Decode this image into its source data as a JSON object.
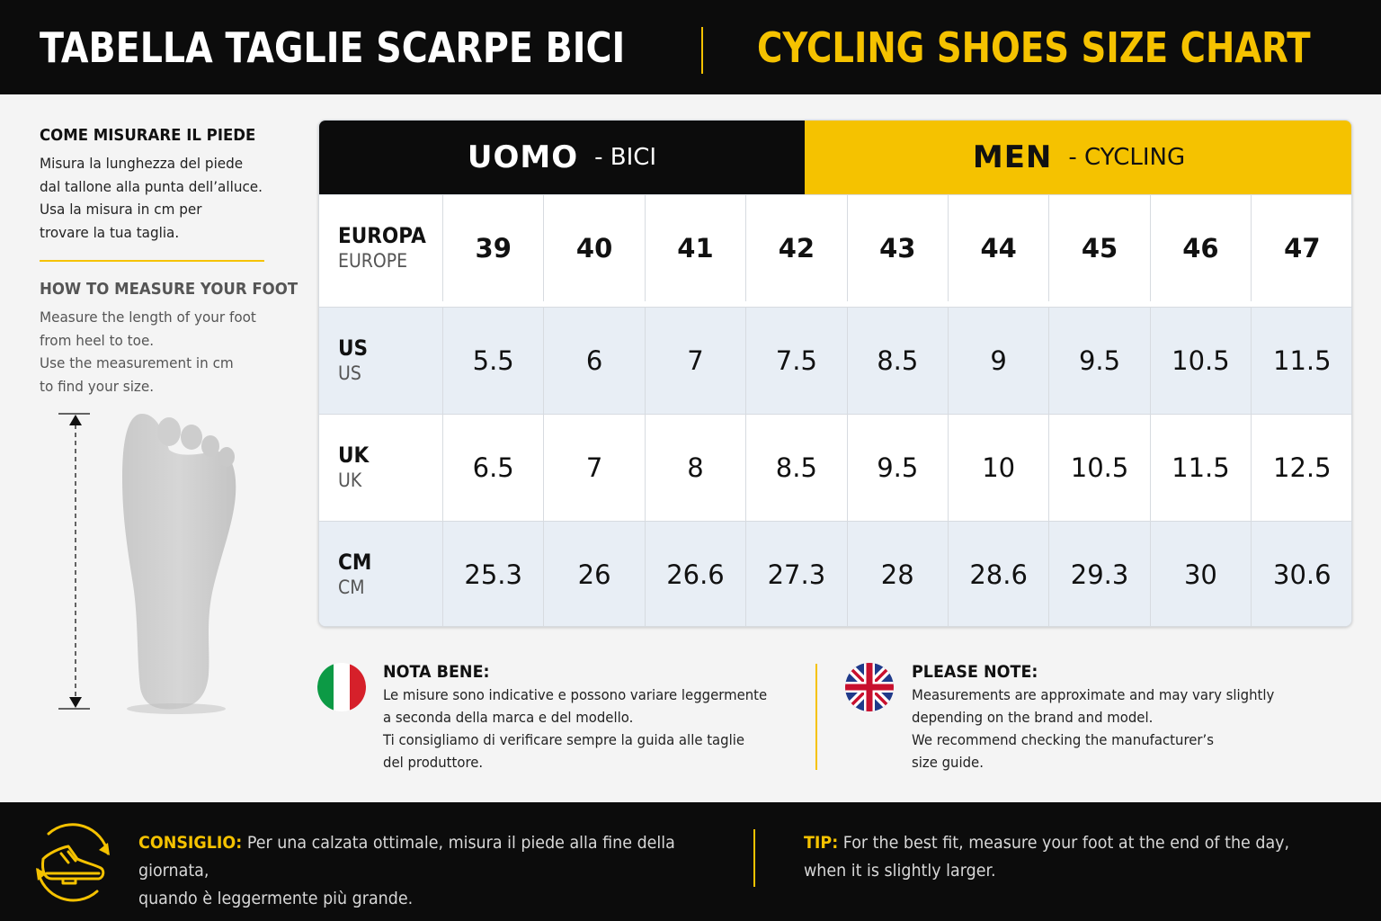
{
  "header": {
    "title_it": "TABELLA TAGLIE SCARPE BICI",
    "title_en": "CYCLING SHOES SIZE CHART"
  },
  "measure": {
    "it_heading": "COME MISURARE IL PIEDE",
    "it_text": "Misura la lunghezza del piede\ndal tallone alla punta dell’alluce.\nUsa la misura in cm per\ntrovare la tua taglia.",
    "en_heading": "HOW TO MEASURE YOUR FOOT",
    "en_text": "Measure the length of your foot\nfrom heel to toe.\nUse the measurement in cm\nto find your size."
  },
  "table": {
    "head_it_main": "UOMO",
    "head_it_sub": "- BICI",
    "head_en_main": "MEN",
    "head_en_sub": "- CYCLING",
    "rows": [
      {
        "label": "EUROPA",
        "sublabel": "EUROPE",
        "values": [
          "39",
          "40",
          "41",
          "42",
          "43",
          "44",
          "45",
          "46",
          "47"
        ]
      },
      {
        "label": "US",
        "sublabel": "US",
        "values": [
          "5.5",
          "6",
          "7",
          "7.5",
          "8.5",
          "9",
          "9.5",
          "10.5",
          "11.5"
        ]
      },
      {
        "label": "UK",
        "sublabel": "UK",
        "values": [
          "6.5",
          "7",
          "8",
          "8.5",
          "9.5",
          "10",
          "10.5",
          "11.5",
          "12.5"
        ]
      },
      {
        "label": "CM",
        "sublabel": "CM",
        "values": [
          "25.3",
          "26",
          "26.6",
          "27.3",
          "28",
          "28.6",
          "29.3",
          "30",
          "30.6"
        ]
      }
    ]
  },
  "notes": {
    "it_heading": "NOTA BENE:",
    "it_text": "Le misure sono indicative e possono variare leggermente\na seconda della marca e del modello.\nTi consigliamo di verificare sempre la guida alle taglie\ndel produttore.",
    "en_heading": "PLEASE NOTE:",
    "en_text": "Measurements are approximate and may vary slightly\ndepending on the brand and model.\nWe recommend checking the manufacturer’s\nsize guide."
  },
  "footer": {
    "it_key": "CONSIGLIO:",
    "it_text": " Per una calzata ottimale, misura il piede alla fine della giornata,\nquando è leggermente più grande.",
    "en_key": "TIP:",
    "en_text": " For the best fit, measure your foot at the end of the day,\nwhen it is slightly larger."
  },
  "icons": {
    "flag_it": "italy-flag-icon",
    "flag_uk": "uk-flag-icon",
    "foot": "foot-outline-icon",
    "tip": "cycling-shoe-icon"
  },
  "colors": {
    "accent": "#f5c200",
    "dark": "#0c0c0c",
    "row_alt": "#e8eef5"
  }
}
